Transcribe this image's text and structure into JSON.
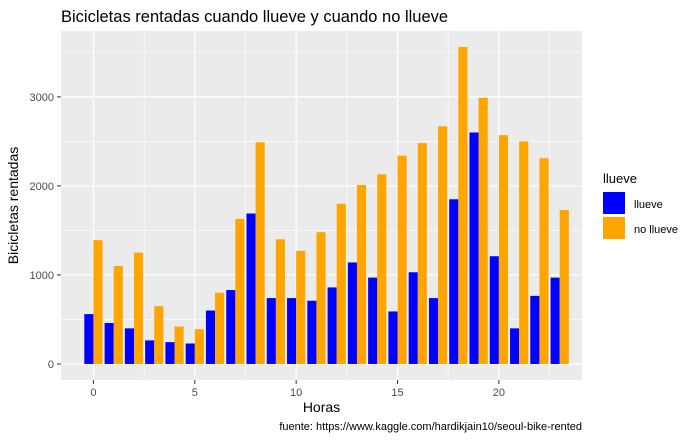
{
  "chart_data": {
    "type": "bar",
    "title": "Bicicletas rentadas cuando llueve y cuando no llueve",
    "xlabel": "Horas",
    "ylabel": "Bicicletas rentadas",
    "caption": "fuente: https://www.kaggle.com/hardikjain10/seoul-bike-rented",
    "x_ticks": [
      0,
      5,
      10,
      15,
      20
    ],
    "y_ticks": [
      0,
      1000,
      2000,
      3000
    ],
    "xlim": [
      -1.6,
      24.1
    ],
    "ylim": [
      -180,
      3740
    ],
    "grid": true,
    "legend": {
      "title": "llueve",
      "position": "right"
    },
    "categories": [
      0,
      1,
      2,
      3,
      4,
      5,
      6,
      7,
      8,
      9,
      10,
      11,
      12,
      13,
      14,
      15,
      16,
      17,
      18,
      19,
      20,
      21,
      22,
      23
    ],
    "series": [
      {
        "name": "llueve",
        "color": "#0000FF",
        "values": [
          560,
          460,
          400,
          265,
          245,
          230,
          600,
          830,
          1690,
          740,
          740,
          710,
          860,
          1140,
          970,
          590,
          1030,
          740,
          1850,
          2600,
          1210,
          400,
          765,
          970
        ]
      },
      {
        "name": "no llueve",
        "color": "#FFA500",
        "values": [
          1390,
          1100,
          1250,
          650,
          420,
          390,
          800,
          1630,
          2490,
          1400,
          1270,
          1480,
          1800,
          2010,
          2130,
          2340,
          2480,
          2670,
          3560,
          2990,
          2570,
          2500,
          2310,
          1730
        ]
      }
    ]
  }
}
